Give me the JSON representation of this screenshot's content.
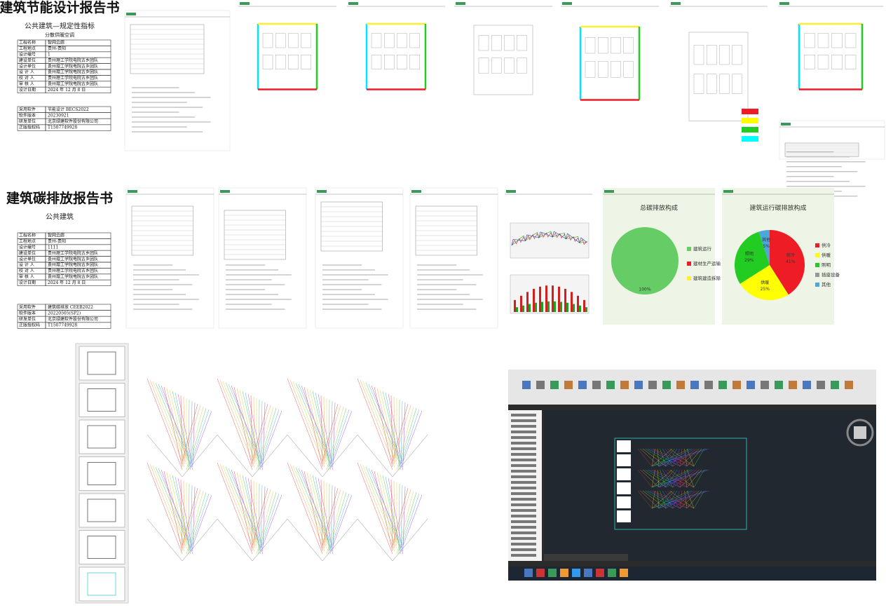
{
  "energy_report": {
    "title": "建筑节能设计报告书",
    "subtitle": "公共建筑—规定性指标",
    "subtitle2": "分散供暖空调",
    "info": [
      [
        "工程名称",
        "智网云廊"
      ],
      [
        "工程地点",
        "贵州-贵阳"
      ],
      [
        "设计编号",
        "1"
      ],
      [
        "建设单位",
        "贵州理工学院电院古乡团队"
      ],
      [
        "设计单位",
        "贵州理工学院电院古乡团队"
      ],
      [
        "设 计 人",
        "贵州理工学院电院古乡团队"
      ],
      [
        "校 对 人",
        "贵州理工学院电院古乡团队"
      ],
      [
        "审 核 人",
        "贵州理工学院电院古乡团队"
      ],
      [
        "设计日期",
        "2024 年 12 月 8 日"
      ]
    ],
    "software": [
      [
        "采用软件",
        "节能设计 BECS2022"
      ],
      [
        "软件版本",
        "20230921"
      ],
      [
        "研发单位",
        "北京绿建软件股份有限公司"
      ],
      [
        "正版授权码",
        "T1507749928"
      ]
    ]
  },
  "carbon_report": {
    "title": "建筑碳排放报告书",
    "subtitle": "公共建筑",
    "info": [
      [
        "工程名称",
        "智网云廊"
      ],
      [
        "工程地点",
        "贵州-贵阳"
      ],
      [
        "设计编号",
        "1111"
      ],
      [
        "建设单位",
        "贵州理工学院电院古乡团队"
      ],
      [
        "设计单位",
        "贵州理工学院电院古乡团队"
      ],
      [
        "设 计 人",
        "贵州理工学院电院古乡团队"
      ],
      [
        "校 对 人",
        "贵州理工学院电院古乡团队"
      ],
      [
        "审 核 人",
        "贵州理工学院电院古乡团队"
      ],
      [
        "设计日期",
        "2024 年 12 月 8 日"
      ]
    ],
    "software": [
      [
        "采用软件",
        "建筑碳排放 CEEB2022"
      ],
      [
        "软件版本",
        "20220505(SP2)"
      ],
      [
        "研发单位",
        "北京绿建软件股份有限公司"
      ],
      [
        "正版授权码",
        "T1507749928"
      ]
    ]
  },
  "pies": [
    {
      "type": "pie",
      "title": "总碳排放构成",
      "categories": [
        "建筑运行",
        "建材生产运输",
        "建筑建造拆除"
      ],
      "values": [
        100,
        0,
        0
      ],
      "value_labels": [
        "100%",
        null,
        null
      ],
      "colors": [
        "#66cc66",
        "#ee1c24",
        "#ffee33"
      ]
    },
    {
      "type": "pie",
      "title": "建筑运行碳排放构成",
      "categories": [
        "供冷",
        "供暖",
        "照明",
        "插座设备",
        "其他"
      ],
      "values": [
        41,
        25,
        29,
        0,
        5
      ],
      "value_labels": [
        "41%",
        "25%",
        "29%",
        null,
        "5%"
      ],
      "colors": [
        "#ee1c24",
        "#ffff00",
        "#22cc22",
        "#999999",
        "#4da6d9"
      ]
    }
  ]
}
